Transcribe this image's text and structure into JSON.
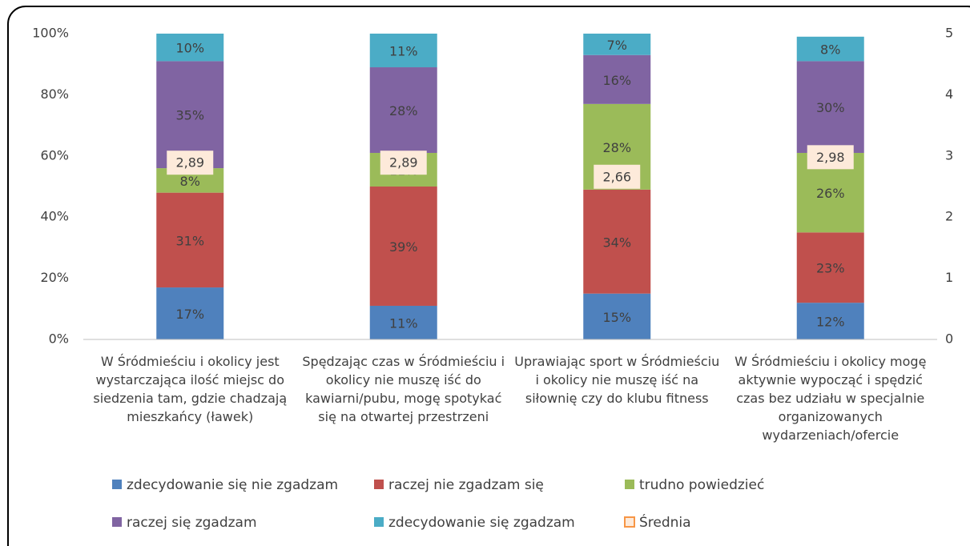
{
  "chart_data": {
    "type": "bar",
    "stacked": true,
    "categories": [
      "W Śródmieściu i okolicy jest wystarczająca ilość miejsc do siedzenia tam, gdzie chadzają mieszkańcy (ławek)",
      "Spędzając czas w Śródmieściu i okolicy nie muszę iść do kawiarni/pubu, mogę spotykać się na otwartej przestrzeni",
      "Uprawiając sport w Śródmieściu i okolicy nie muszę iść na siłownię czy do klubu fitness",
      "W Śródmieściu i okolicy mogę aktywnie wypocząć i spędzić czas bez udziału w specjalnie organizowanych wydarzeniach/ofercie"
    ],
    "series": [
      {
        "name": "zdecydowanie się nie zgadzam",
        "color": "#4f81bd",
        "values": [
          17,
          11,
          15,
          12
        ],
        "value_labels": [
          "17%",
          "11%",
          "15%",
          "12%"
        ]
      },
      {
        "name": "raczej nie zgadzam się",
        "color": "#c0504d",
        "values": [
          31,
          39,
          34,
          23
        ],
        "value_labels": [
          "31%",
          "39%",
          "34%",
          "23%"
        ]
      },
      {
        "name": "trudno powiedzieć",
        "color": "#9bbb59",
        "values": [
          8,
          11,
          28,
          26
        ],
        "value_labels": [
          "8%",
          "11%",
          "28%",
          "26%"
        ]
      },
      {
        "name": "raczej się zgadzam",
        "color": "#8064a2",
        "values": [
          35,
          28,
          16,
          30
        ],
        "value_labels": [
          "35%",
          "28%",
          "16%",
          "30%"
        ]
      },
      {
        "name": "zdecydowanie się zgadzam",
        "color": "#4bacc6",
        "values": [
          10,
          11,
          7,
          8
        ],
        "value_labels": [
          "10%",
          "11%",
          "7%",
          "8%"
        ]
      },
      {
        "name": "Średnia",
        "color": "#f79646",
        "axis": "y2",
        "values": [
          2.89,
          2.89,
          2.66,
          2.98
        ],
        "value_labels": [
          "2,89",
          "2,89",
          "2,66",
          "2,98"
        ]
      }
    ],
    "ylim": [
      0,
      100
    ],
    "yticks": [
      {
        "value": 0,
        "label": "0%"
      },
      {
        "value": 20,
        "label": "20%"
      },
      {
        "value": 40,
        "label": "40%"
      },
      {
        "value": 60,
        "label": "60%"
      },
      {
        "value": 80,
        "label": "80%"
      },
      {
        "value": 100,
        "label": "100%"
      }
    ],
    "y2lim": [
      0,
      5
    ],
    "y2ticks": [
      0,
      1,
      2,
      3,
      4,
      5
    ]
  }
}
